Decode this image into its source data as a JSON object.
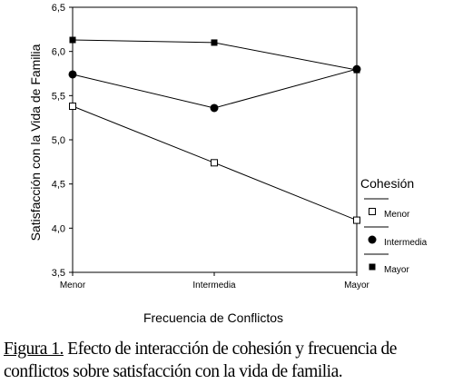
{
  "chart_data": {
    "type": "line",
    "categories": [
      "Menor",
      "Intermedia",
      "Mayor"
    ],
    "ylim": [
      3.5,
      6.5
    ],
    "y_ticks": [
      "3,5",
      "4,0",
      "4,5",
      "5,0",
      "5,5",
      "6,0",
      "6,5"
    ],
    "xlabel": "Frecuencia de Conflictos",
    "ylabel": "Satisfacción con la Vida de Familia",
    "legend_title": "Cohesión",
    "legend_position": "right",
    "grid": false,
    "series": [
      {
        "name": "Menor",
        "marker": "open-square",
        "values": [
          5.38,
          4.74,
          4.09
        ]
      },
      {
        "name": "Intermedia",
        "marker": "filled-circle",
        "values": [
          5.74,
          5.36,
          5.8
        ]
      },
      {
        "name": "Mayor",
        "marker": "filled-square",
        "values": [
          6.13,
          6.1,
          5.79
        ]
      }
    ]
  },
  "caption": {
    "label": "Figura 1.",
    "text": " Efecto de interacción de cohesión y frecuencia de conflictos sobre satisfacción con la vida de familia."
  },
  "colors": {
    "ink": "#000000",
    "background": "#ffffff"
  }
}
